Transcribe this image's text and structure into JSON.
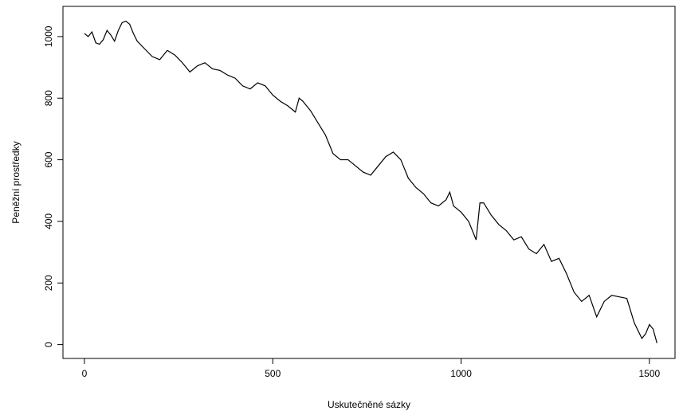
{
  "chart_data": {
    "type": "line",
    "x_label": "Uskutečněné sázky",
    "y_label": "Peněžní prostředky",
    "x": [
      0,
      10,
      20,
      30,
      40,
      50,
      60,
      70,
      80,
      90,
      100,
      110,
      120,
      130,
      140,
      160,
      180,
      200,
      220,
      240,
      260,
      280,
      300,
      320,
      340,
      360,
      380,
      400,
      420,
      440,
      460,
      480,
      500,
      520,
      540,
      560,
      570,
      580,
      600,
      620,
      640,
      660,
      680,
      700,
      720,
      740,
      760,
      780,
      800,
      820,
      840,
      860,
      880,
      900,
      920,
      940,
      960,
      970,
      980,
      1000,
      1020,
      1040,
      1050,
      1060,
      1080,
      1100,
      1120,
      1140,
      1160,
      1180,
      1200,
      1220,
      1240,
      1260,
      1280,
      1300,
      1320,
      1340,
      1360,
      1380,
      1400,
      1420,
      1440,
      1460,
      1480,
      1490,
      1500,
      1510,
      1520
    ],
    "series": [
      {
        "color": "#000000",
        "values": [
          1010,
          1000,
          1015,
          980,
          975,
          990,
          1020,
          1005,
          985,
          1020,
          1045,
          1050,
          1040,
          1010,
          985,
          960,
          935,
          925,
          955,
          940,
          915,
          885,
          905,
          915,
          895,
          890,
          875,
          865,
          840,
          830,
          850,
          840,
          810,
          790,
          775,
          755,
          800,
          790,
          760,
          720,
          680,
          620,
          600,
          600,
          580,
          560,
          550,
          580,
          610,
          625,
          600,
          540,
          510,
          490,
          460,
          450,
          470,
          495,
          450,
          430,
          400,
          340,
          460,
          460,
          420,
          390,
          370,
          340,
          350,
          310,
          295,
          325,
          270,
          280,
          230,
          170,
          140,
          160,
          90,
          140,
          160,
          155,
          150,
          70,
          20,
          35,
          65,
          50,
          5
        ]
      }
    ],
    "xlim": [
      -57,
      1568
    ],
    "ylim": [
      -45,
      1098
    ],
    "xticks": [
      0,
      500,
      1000,
      1500
    ],
    "yticks": [
      0,
      200,
      400,
      600,
      800,
      1000
    ]
  }
}
